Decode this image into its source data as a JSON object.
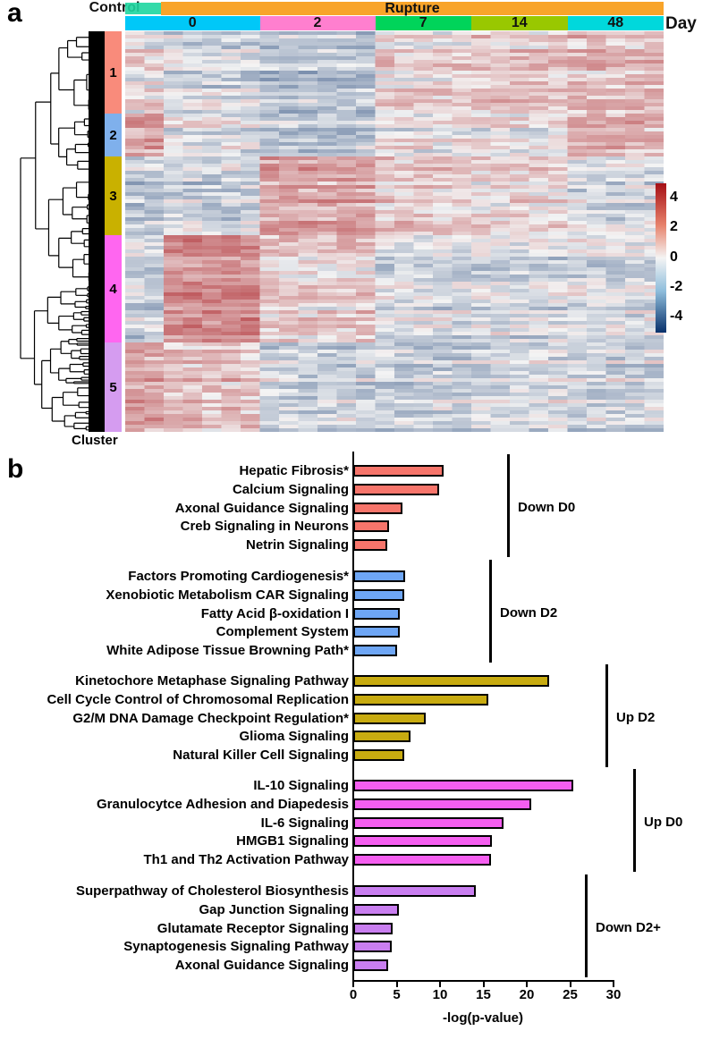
{
  "panel_a_label": "a",
  "panel_b_label": "b",
  "chart_data": [
    {
      "type": "heatmap",
      "condition_header": {
        "control": "Control",
        "rupture": "Rupture"
      },
      "day_label": "Day",
      "cluster_label": "Cluster",
      "day_groups": [
        {
          "label": "0",
          "columns": 7,
          "color": "#00c8f8"
        },
        {
          "label": "2",
          "columns": 6,
          "color": "#ff7fcf"
        },
        {
          "label": "7",
          "columns": 5,
          "color": "#00d45a"
        },
        {
          "label": "14",
          "columns": 5,
          "color": "#99c800"
        },
        {
          "label": "48",
          "columns": 5,
          "color": "#00d8dc"
        }
      ],
      "control_columns": 2,
      "control_color": "#1ed6a0",
      "rupture_color": "#f8a42a",
      "clusters": [
        {
          "label": "1",
          "color": "#f98b7b",
          "rows": 23,
          "control": 0.2,
          "means": [
            -0.5,
            -1.0,
            0.5,
            0.7,
            1.0
          ]
        },
        {
          "label": "2",
          "color": "#7fb0ec",
          "rows": 12,
          "control": 1.5,
          "means": [
            -0.3,
            -1.0,
            0.0,
            0.1,
            1.2
          ]
        },
        {
          "label": "3",
          "color": "#c9b100",
          "rows": 22,
          "control": -1.0,
          "means": [
            -0.7,
            1.5,
            0.7,
            0.3,
            -0.5
          ]
        },
        {
          "label": "4",
          "color": "#ff66f0",
          "rows": 30,
          "control": -0.8,
          "means": [
            2.0,
            0.5,
            -0.5,
            -0.5,
            -0.5
          ]
        },
        {
          "label": "5",
          "color": "#d59cf0",
          "rows": 25,
          "control": 1.6,
          "means": [
            1.0,
            -0.5,
            -0.5,
            -0.3,
            -0.5
          ]
        }
      ],
      "colorbar": {
        "ticks": [
          "4",
          "2",
          "0",
          "-2",
          "-4"
        ],
        "range": [
          -5,
          5
        ],
        "low": "#08306b",
        "mid": "#f4f4f4",
        "high": "#a50f15"
      }
    },
    {
      "type": "bar",
      "orientation": "horizontal",
      "xlabel": "-log(p-value)",
      "xlim": [
        0,
        30
      ],
      "xticks": [
        "0",
        "5",
        "10",
        "15",
        "20",
        "25",
        "30"
      ],
      "groups": [
        {
          "name": "Down D0",
          "color": "#f7756b",
          "categories": [
            "Hepatic Fibrosis*",
            "Calcium Signaling",
            "Axonal Guidance Signaling",
            "Creb Signaling in Neurons",
            "Netrin Signaling"
          ],
          "values": [
            10.4,
            9.9,
            5.7,
            4.1,
            3.9
          ]
        },
        {
          "name": "Down D2",
          "color": "#6ea6f5",
          "categories": [
            "Factors Promoting Cardiogenesis*",
            "Xenobiotic Metabolism CAR Signaling",
            "Fatty Acid β-oxidation I",
            "Complement System",
            "White Adipose Tissue Browning Path*"
          ],
          "values": [
            6.0,
            5.9,
            5.4,
            5.4,
            5.1
          ]
        },
        {
          "name": "Up D2",
          "color": "#c8ab10",
          "categories": [
            "Kinetochore Metaphase Signaling Pathway",
            "Cell Cycle Control of Chromosomal Replication",
            "G2/M DNA Damage Checkpoint Regulation*",
            "Glioma Signaling",
            "Natural Killer Cell Signaling"
          ],
          "values": [
            22.6,
            15.6,
            8.4,
            6.6,
            5.9
          ]
        },
        {
          "name": "Up D0",
          "color": "#f55ef0",
          "categories": [
            "IL-10 Signaling",
            "Granulocytce Adhesion and Diapedesis",
            "IL-6 Signaling",
            "HMGB1 Signaling",
            "Th1 and Th2 Activation Pathway"
          ],
          "values": [
            25.4,
            20.5,
            17.3,
            16.0,
            15.9
          ]
        },
        {
          "name": "Down D2+",
          "color": "#c97ef0",
          "categories": [
            "Superpathway of Cholesterol Biosynthesis",
            "Gap Junction Signaling",
            "Glutamate Receptor Signaling",
            "Synaptogenesis Signaling Pathway",
            "Axonal Guidance Signaling"
          ],
          "values": [
            14.1,
            5.3,
            4.5,
            4.4,
            4.0
          ]
        }
      ]
    }
  ]
}
